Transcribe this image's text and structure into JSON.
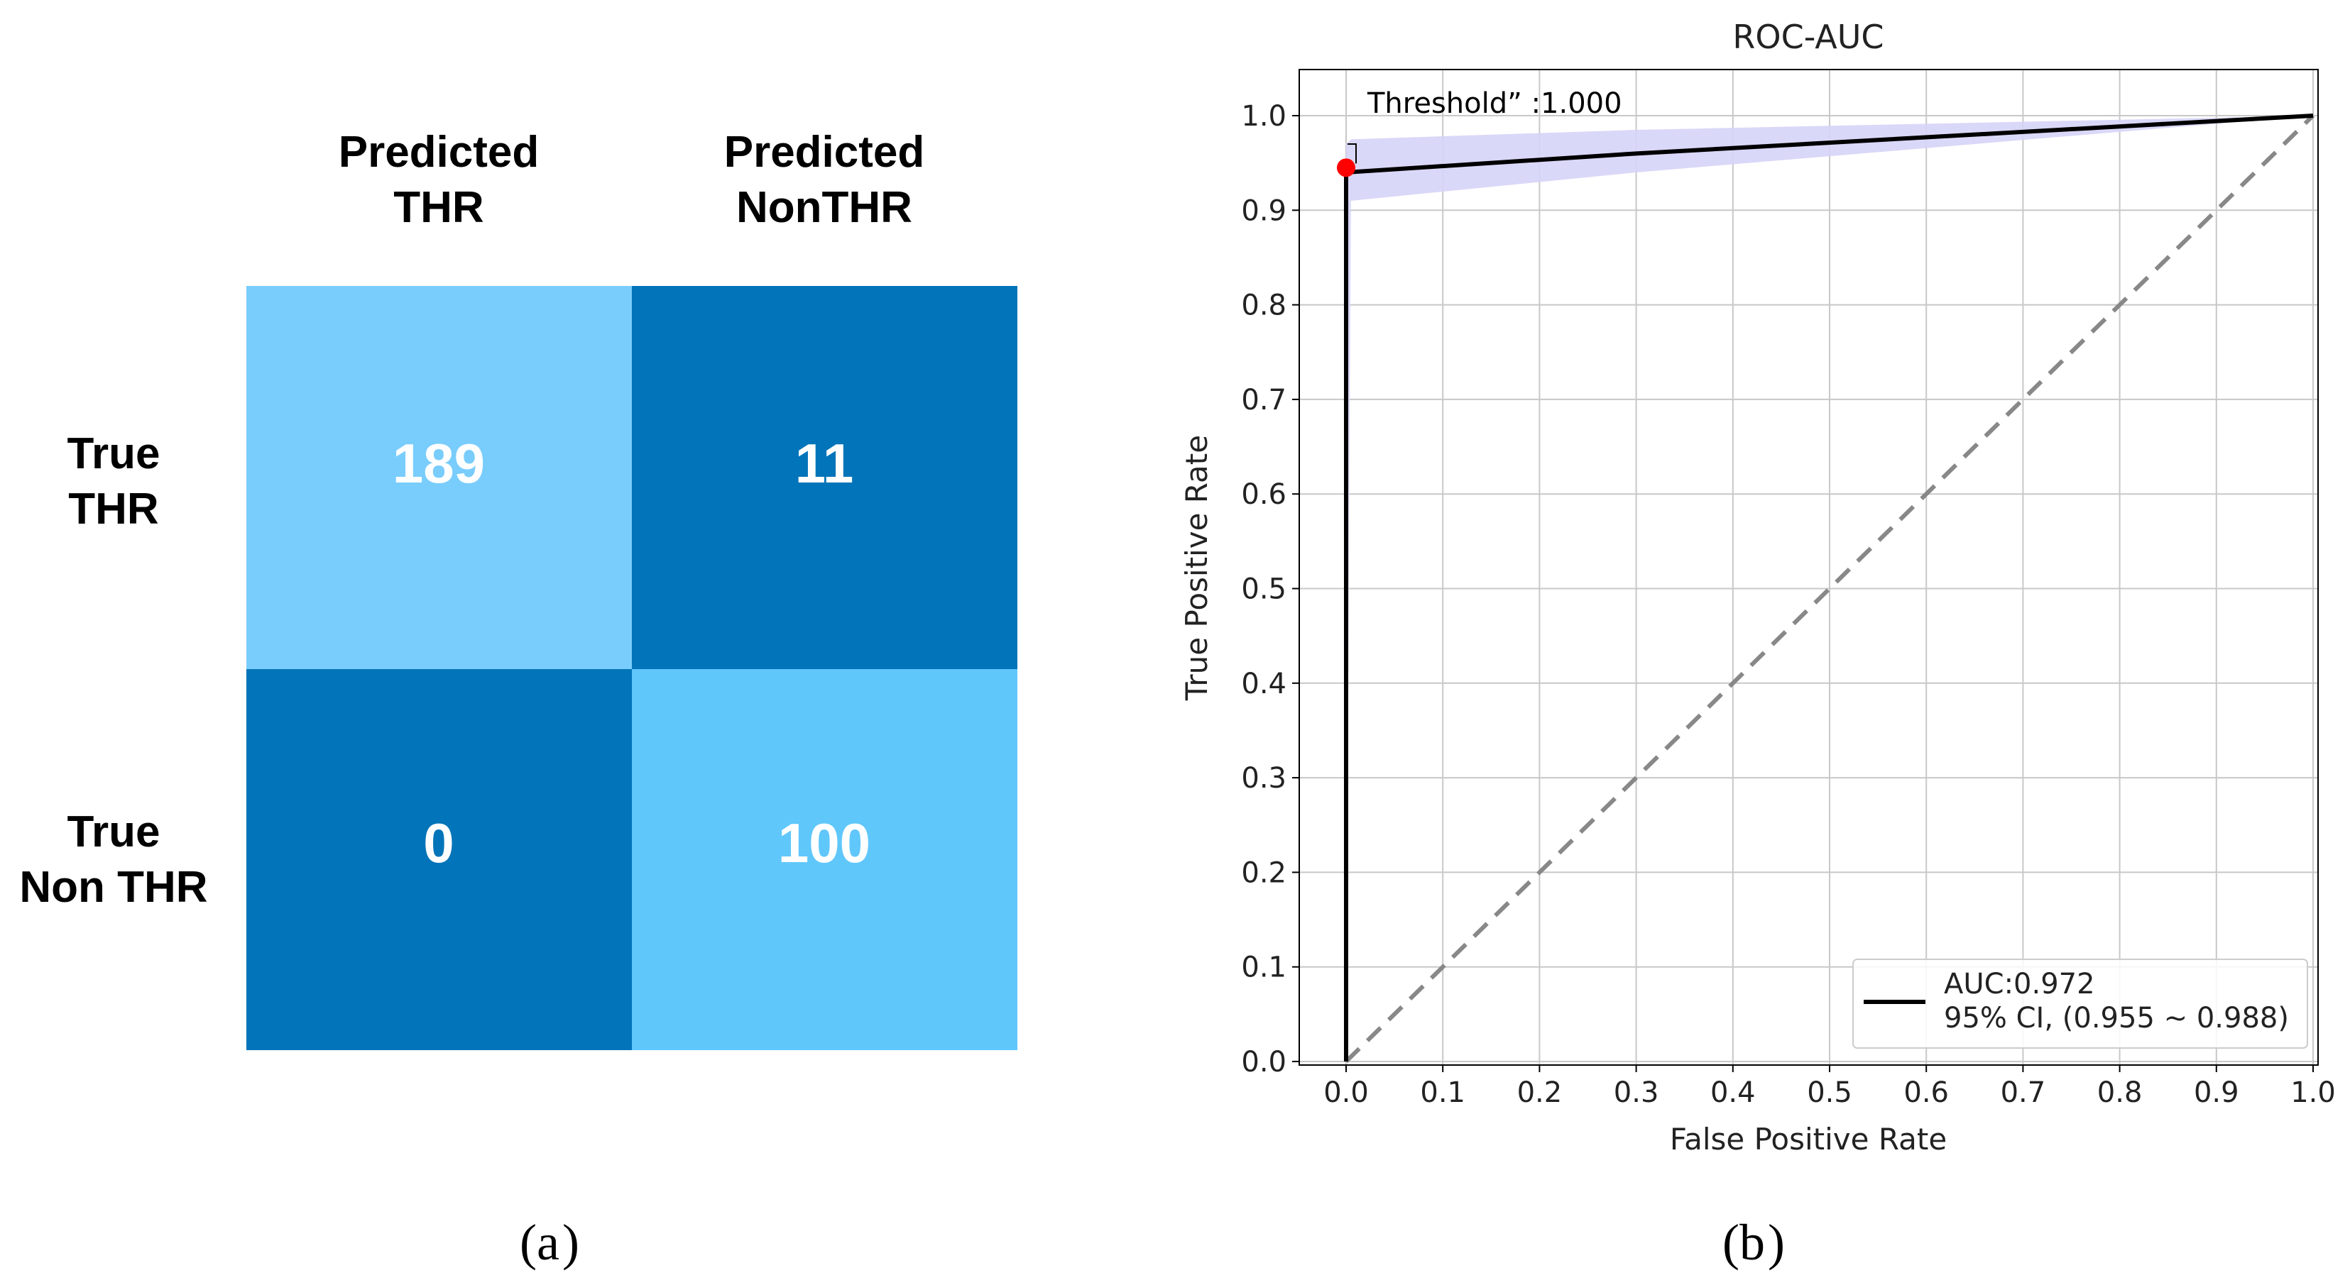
{
  "panels": {
    "a": "a",
    "b": "b"
  },
  "chart_data": [
    {
      "type": "heatmap",
      "col_headers": [
        [
          "Predicted",
          "THR"
        ],
        [
          "Predicted",
          "NonTHR"
        ]
      ],
      "row_headers": [
        [
          "True",
          "THR"
        ],
        [
          "True",
          "Non THR"
        ]
      ],
      "values": [
        [
          189,
          11
        ],
        [
          0,
          100
        ]
      ],
      "colors": [
        [
          "#79cdfc",
          "#0274b9"
        ],
        [
          "#0274b9",
          "#60c7fb"
        ]
      ]
    },
    {
      "type": "line",
      "title": "ROC-AUC",
      "xlabel": "False Positive Rate",
      "ylabel": "True Positive Rate",
      "xlim": [
        0.0,
        1.0
      ],
      "ylim": [
        0.0,
        1.0
      ],
      "xticks": [
        "0.0",
        "0.1",
        "0.2",
        "0.3",
        "0.4",
        "0.5",
        "0.6",
        "0.7",
        "0.8",
        "0.9",
        "1.0"
      ],
      "yticks": [
        "0.0",
        "0.1",
        "0.2",
        "0.3",
        "0.4",
        "0.5",
        "0.6",
        "0.7",
        "0.8",
        "0.9",
        "1.0"
      ],
      "grid": true,
      "series": [
        {
          "name": "AUC:0.972",
          "color": "#000000",
          "x": [
            0.0,
            0.0,
            0.3,
            1.0
          ],
          "y": [
            0.0,
            0.94,
            0.96,
            1.0
          ]
        }
      ],
      "ci_band": {
        "color": "#d6d4f7",
        "x": [
          0.0,
          0.005,
          0.3,
          1.0
        ],
        "upper": [
          0.97,
          0.975,
          0.985,
          1.0
        ],
        "lower": [
          0.0,
          0.91,
          0.94,
          1.0
        ]
      },
      "diagonal": {
        "color": "#888888",
        "x": [
          0.0,
          1.0
        ],
        "y": [
          0.0,
          1.0
        ]
      },
      "threshold_point": {
        "x": 0.0,
        "y": 0.945,
        "color": "#ff0000",
        "label": "Threshold” :1.000"
      },
      "legend": {
        "position": "lower-right",
        "lines": [
          "AUC:0.972",
          "95% CI, (0.955 ~ 0.988)"
        ]
      }
    }
  ]
}
